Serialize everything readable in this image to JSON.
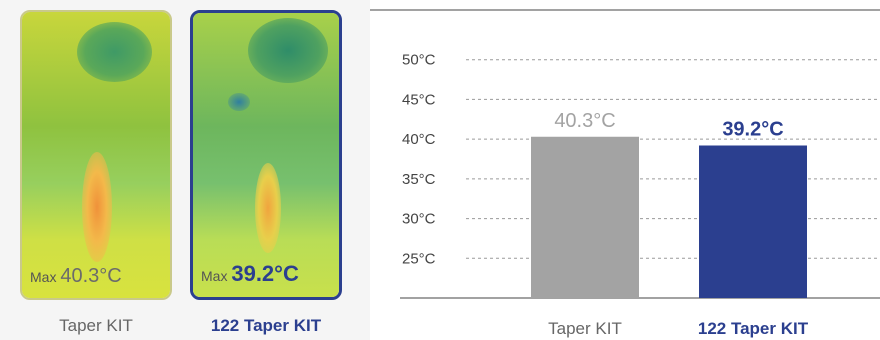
{
  "thermal_images": [
    {
      "max_prefix": "Max",
      "max_value": "40.3°C",
      "label": "Taper KIT"
    },
    {
      "max_prefix": "Max",
      "max_value": "39.2°C",
      "label": "122 Taper KIT"
    }
  ],
  "colors": {
    "accent": "#2b3f8f",
    "grey_bar": "#a3a3a3",
    "grey_text": "#666666"
  },
  "chart_data": {
    "type": "bar",
    "categories": [
      "Taper KIT",
      "122 Taper KIT"
    ],
    "values": [
      40.3,
      39.2
    ],
    "data_labels": [
      "40.3°C",
      "39.2°C"
    ],
    "yticks": [
      "25°C",
      "30°C",
      "35°C",
      "40°C",
      "45°C",
      "50°C"
    ],
    "ytick_values": [
      25,
      30,
      35,
      40,
      45,
      50
    ],
    "ylim": [
      20,
      55
    ],
    "bar_colors": [
      "#a3a3a3",
      "#2b3f8f"
    ],
    "grid": true
  }
}
